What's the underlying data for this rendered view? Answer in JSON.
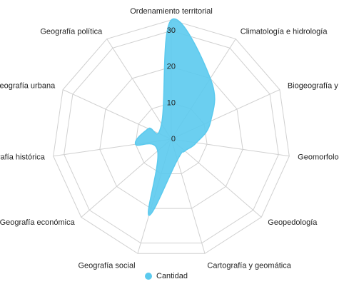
{
  "chart_data": {
    "type": "radar",
    "categories": [
      "Ordenamiento territorial",
      "Climatología e hidrología",
      "Biogeografía y ecología",
      "Geomorfología",
      "Geopedología",
      "Cartografía y geomática",
      "Geografía social",
      "Geografía económica",
      "Geografía histórica",
      "Geografía urbana",
      "Geografía política"
    ],
    "series": [
      {
        "name": "Cantidad",
        "color": "#5bcaee",
        "values": [
          33,
          20,
          12,
          7,
          5,
          6,
          22,
          5,
          10,
          7,
          5
        ]
      }
    ],
    "ylim": [
      0,
      33
    ],
    "yticks": [
      0,
      10,
      20,
      30
    ],
    "grid": true,
    "legend": "bottom"
  }
}
